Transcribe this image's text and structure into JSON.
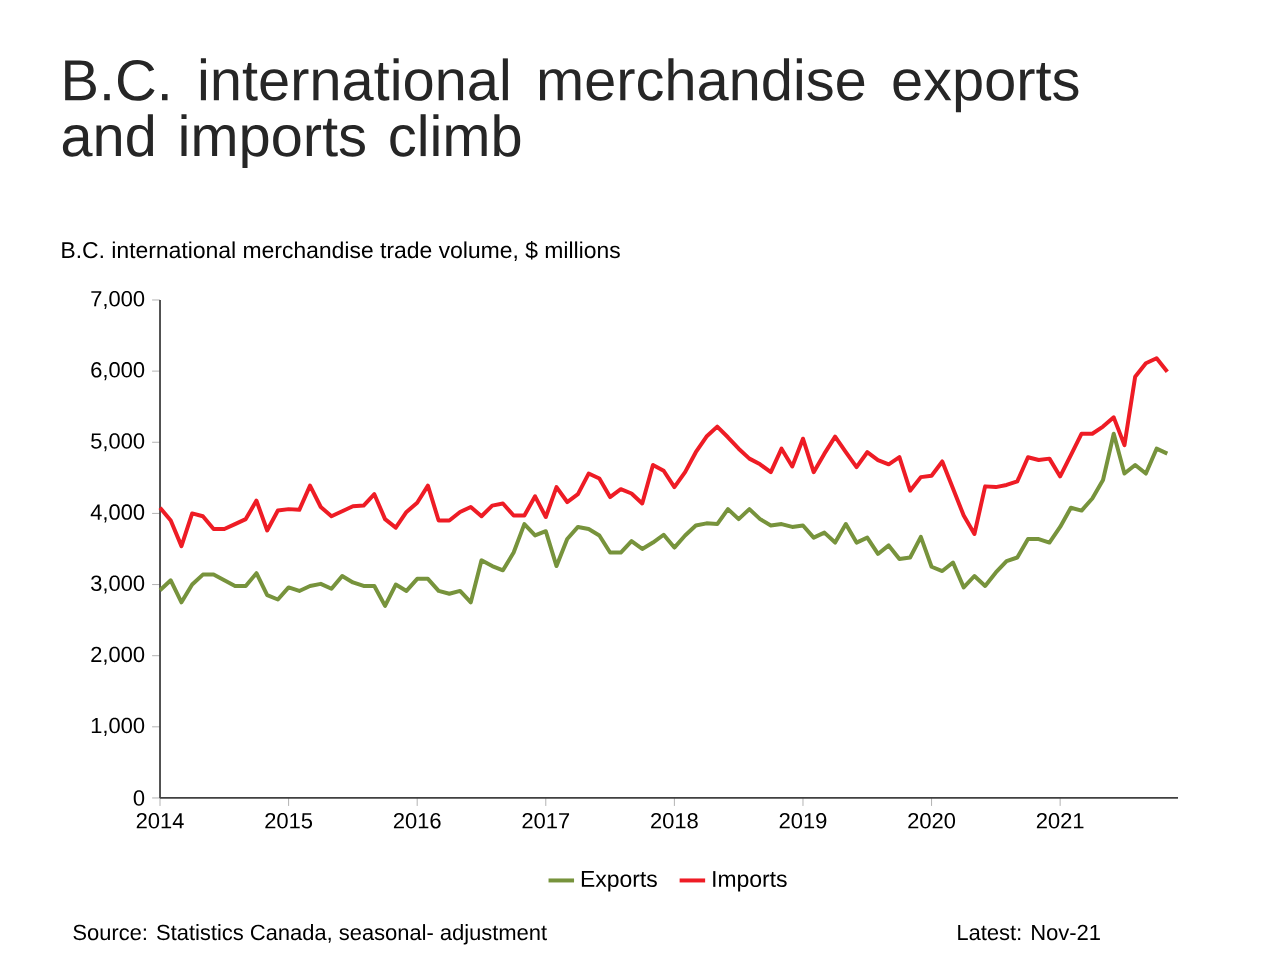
{
  "chart_data": {
    "type": "line",
    "title": "B.C. international merchandise exports and imports climb",
    "ylabel": "B.C. international merchandise trade volume, $ millions",
    "x": [
      "2014-01",
      "2014-02",
      "2014-03",
      "2014-04",
      "2014-05",
      "2014-06",
      "2014-07",
      "2014-08",
      "2014-09",
      "2014-10",
      "2014-11",
      "2014-12",
      "2015-01",
      "2015-02",
      "2015-03",
      "2015-04",
      "2015-05",
      "2015-06",
      "2015-07",
      "2015-08",
      "2015-09",
      "2015-10",
      "2015-11",
      "2015-12",
      "2016-01",
      "2016-02",
      "2016-03",
      "2016-04",
      "2016-05",
      "2016-06",
      "2016-07",
      "2016-08",
      "2016-09",
      "2016-10",
      "2016-11",
      "2016-12",
      "2017-01",
      "2017-02",
      "2017-03",
      "2017-04",
      "2017-05",
      "2017-06",
      "2017-07",
      "2017-08",
      "2017-09",
      "2017-10",
      "2017-11",
      "2017-12",
      "2018-01",
      "2018-02",
      "2018-03",
      "2018-04",
      "2018-05",
      "2018-06",
      "2018-07",
      "2018-08",
      "2018-09",
      "2018-10",
      "2018-11",
      "2018-12",
      "2019-01",
      "2019-02",
      "2019-03",
      "2019-04",
      "2019-05",
      "2019-06",
      "2019-07",
      "2019-08",
      "2019-09",
      "2019-10",
      "2019-11",
      "2019-12",
      "2020-01",
      "2020-02",
      "2020-03",
      "2020-04",
      "2020-05",
      "2020-06",
      "2020-07",
      "2020-08",
      "2020-09",
      "2020-10",
      "2020-11",
      "2020-12",
      "2021-01",
      "2021-02",
      "2021-03",
      "2021-04",
      "2021-05",
      "2021-06",
      "2021-07",
      "2021-08",
      "2021-09",
      "2021-10",
      "2021-11"
    ],
    "series": [
      {
        "name": "Exports",
        "color": "#77933c",
        "values": [
          2920,
          3060,
          2750,
          3000,
          3140,
          3140,
          3060,
          2980,
          2980,
          3160,
          2850,
          2790,
          2960,
          2910,
          2980,
          3010,
          2940,
          3120,
          3030,
          2980,
          2980,
          2700,
          3000,
          2910,
          3080,
          3080,
          2910,
          2870,
          2910,
          2750,
          3340,
          3260,
          3200,
          3450,
          3850,
          3690,
          3750,
          3260,
          3640,
          3810,
          3780,
          3690,
          3450,
          3450,
          3610,
          3500,
          3590,
          3700,
          3520,
          3690,
          3830,
          3860,
          3850,
          4060,
          3920,
          4060,
          3920,
          3830,
          3850,
          3810,
          3830,
          3660,
          3730,
          3590,
          3850,
          3590,
          3660,
          3430,
          3550,
          3360,
          3380,
          3670,
          3250,
          3190,
          3310,
          2960,
          3120,
          2980,
          3170,
          3330,
          3380,
          3640,
          3640,
          3590,
          3810,
          4080,
          4040,
          4210,
          4470,
          5120,
          4560,
          4680,
          4560,
          4910,
          4840
        ]
      },
      {
        "name": "Imports",
        "color": "#ee1c25",
        "values": [
          4080,
          3900,
          3540,
          4000,
          3960,
          3780,
          3780,
          3850,
          3920,
          4180,
          3760,
          4040,
          4060,
          4050,
          4390,
          4090,
          3960,
          4030,
          4100,
          4110,
          4270,
          3920,
          3800,
          4020,
          4150,
          4390,
          3900,
          3900,
          4020,
          4090,
          3960,
          4110,
          4140,
          3970,
          3970,
          4240,
          3950,
          4370,
          4160,
          4270,
          4560,
          4490,
          4230,
          4340,
          4280,
          4140,
          4680,
          4600,
          4370,
          4580,
          4860,
          5080,
          5220,
          5070,
          4910,
          4770,
          4690,
          4580,
          4910,
          4660,
          5050,
          4580,
          4840,
          5080,
          4860,
          4650,
          4860,
          4750,
          4690,
          4790,
          4320,
          4510,
          4530,
          4730,
          4350,
          3970,
          3710,
          4380,
          4370,
          4400,
          4450,
          4790,
          4750,
          4770,
          4520,
          4820,
          5120,
          5120,
          5220,
          5350,
          4960,
          5920,
          6110,
          6180,
          5990
        ]
      }
    ],
    "xlim": [
      "2014-01",
      "2021-12"
    ],
    "xticks": [
      "2014",
      "2015",
      "2016",
      "2017",
      "2018",
      "2019",
      "2020",
      "2021"
    ],
    "ylim": [
      0,
      7000
    ],
    "yticks": [
      {
        "value": 0,
        "label": "0"
      },
      {
        "value": 1000,
        "label": "1,000"
      },
      {
        "value": 2000,
        "label": "2,000"
      },
      {
        "value": 3000,
        "label": "3,000"
      },
      {
        "value": 4000,
        "label": "4,000"
      },
      {
        "value": 5000,
        "label": "5,000"
      },
      {
        "value": 6000,
        "label": "6,000"
      },
      {
        "value": 7000,
        "label": "7,000"
      }
    ],
    "legend": "bottom",
    "line_style": "solid",
    "annotations": [
      "Source: Statistics Canada, seasonal- adjustment",
      "Latest: Nov-21"
    ]
  }
}
